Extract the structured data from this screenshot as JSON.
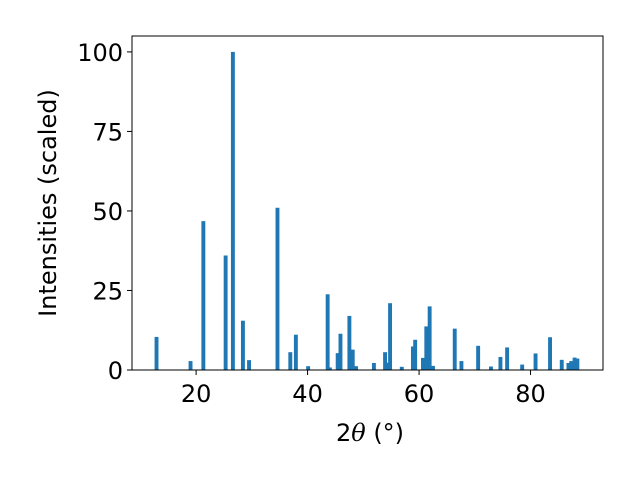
{
  "chart_data": {
    "type": "bar",
    "xlabel_parts": {
      "prefix": "2",
      "symbol": "θ",
      "unit": " (°)"
    },
    "ylabel": "Intensities (scaled)",
    "xlim": [
      8.5,
      93
    ],
    "ylim": [
      0,
      105
    ],
    "x_ticks": [
      20,
      40,
      60,
      80
    ],
    "y_ticks": [
      0,
      25,
      50,
      75,
      100
    ],
    "bar_width_units": 0.7,
    "bar_color": "#1f77b4",
    "series": [
      {
        "x": [
          12.9,
          19.0,
          21.3,
          25.3,
          26.6,
          28.4,
          29.5,
          34.6,
          36.9,
          37.9,
          40.1,
          43.6,
          44.0,
          45.4,
          45.9,
          47.5,
          48.1,
          48.7,
          51.9,
          53.9,
          54.4,
          54.8,
          56.9,
          58.9,
          59.3,
          60.7,
          61.3,
          61.9,
          62.5,
          66.4,
          67.6,
          70.6,
          72.9,
          74.6,
          75.8,
          78.5,
          80.9,
          83.5,
          85.6,
          86.8,
          87.3,
          87.9,
          88.4
        ],
        "y": [
          10.4,
          2.8,
          46.8,
          36.0,
          100.0,
          15.5,
          3.1,
          51.0,
          5.6,
          11.1,
          1.2,
          23.8,
          0.8,
          5.3,
          11.4,
          17.0,
          6.4,
          1.2,
          2.2,
          5.6,
          2.3,
          21.0,
          1.0,
          7.4,
          9.5,
          3.8,
          13.7,
          20.0,
          1.3,
          13.0,
          2.8,
          7.6,
          1.1,
          4.1,
          7.1,
          1.7,
          5.2,
          10.3,
          3.2,
          2.2,
          2.8,
          3.9,
          3.6
        ]
      }
    ]
  }
}
